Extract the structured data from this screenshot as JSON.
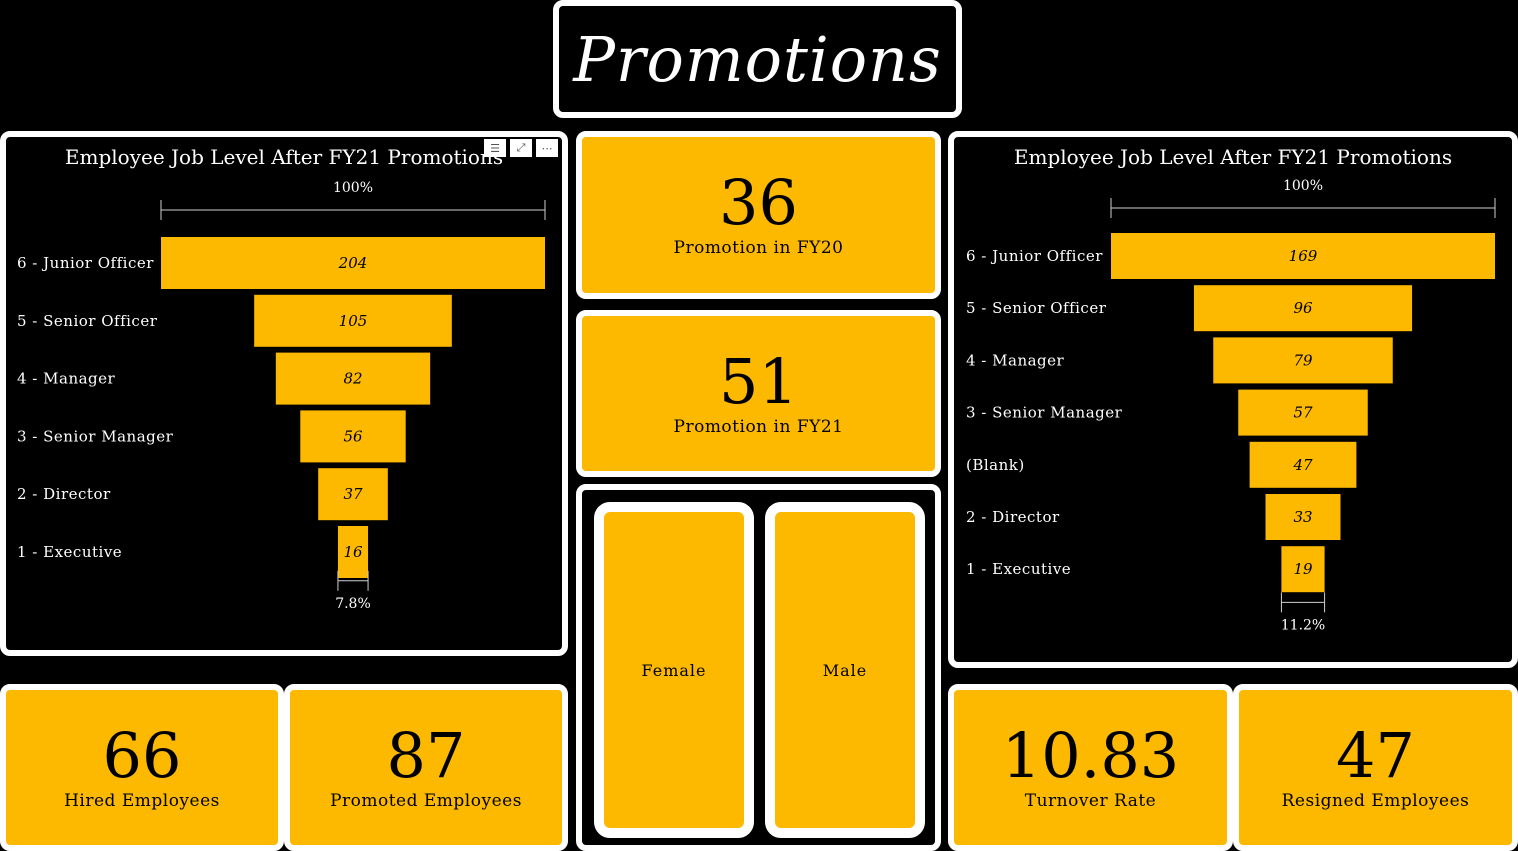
{
  "page": {
    "title": "Promotions"
  },
  "visual_header": {
    "filter_icon": "filter-icon",
    "focus_icon": "focus-mode-icon",
    "more_icon": "more-options-icon"
  },
  "kpis": {
    "fy20": {
      "value": "36",
      "label": "Promotion in FY20"
    },
    "fy21": {
      "value": "51",
      "label": "Promotion in FY21"
    },
    "hired": {
      "value": "66",
      "label": "Hired Employees"
    },
    "promoted": {
      "value": "87",
      "label": "Promoted Employees"
    },
    "turnover": {
      "value": "10.83",
      "label": "Turnover Rate"
    },
    "resigned": {
      "value": "47",
      "label": "Resigned Employees"
    }
  },
  "gender": {
    "female": "Female",
    "male": "Male"
  },
  "colors": {
    "accent": "#fcb900",
    "background": "#000000",
    "border": "#ffffff"
  },
  "chart_data": [
    {
      "type": "funnel",
      "title": "Employee Job Level After FY21 Promotions",
      "categories": [
        "6 - Junior Officer",
        "5 - Senior Officer",
        "4 - Manager",
        "3 - Senior Manager",
        "2 - Director",
        "1 - Executive"
      ],
      "values": [
        204,
        105,
        82,
        56,
        37,
        16
      ],
      "top_label": "100%",
      "bottom_label": "7.8%"
    },
    {
      "type": "funnel",
      "title": "Employee Job Level After FY21 Promotions",
      "categories": [
        "6 - Junior Officer",
        "5 - Senior Officer",
        "4 - Manager",
        "3 - Senior Manager",
        "(Blank)",
        "2 - Director",
        "1 - Executive"
      ],
      "values": [
        169,
        96,
        79,
        57,
        47,
        33,
        19
      ],
      "top_label": "100%",
      "bottom_label": "11.2%"
    }
  ]
}
